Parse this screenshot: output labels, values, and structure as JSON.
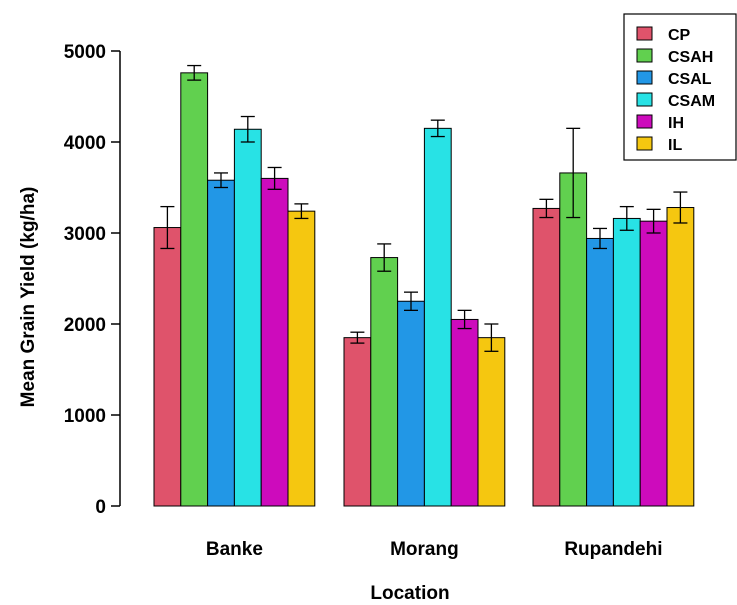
{
  "chart_data": {
    "type": "bar",
    "title": "",
    "xlabel": "Location",
    "ylabel": "Mean Grain Yield (kg/ha)",
    "ylim": [
      0,
      5000
    ],
    "yticks": [
      "0",
      "1000",
      "2000",
      "3000",
      "4000",
      "5000"
    ],
    "categories": [
      "Banke",
      "Morang",
      "Rupandehi"
    ],
    "legend_position": "top-right",
    "error_bars": true,
    "series": [
      {
        "name": "CP",
        "color": "#DF536B",
        "values": [
          3060,
          1850,
          3270
        ],
        "err": [
          230,
          60,
          100
        ]
      },
      {
        "name": "CSAH",
        "color": "#61D04F",
        "values": [
          4760,
          2730,
          3660
        ],
        "err": [
          80,
          150,
          490
        ]
      },
      {
        "name": "CSAL",
        "color": "#2297E6",
        "values": [
          3580,
          2250,
          2940
        ],
        "err": [
          80,
          100,
          110
        ]
      },
      {
        "name": "CSAM",
        "color": "#28E2E5",
        "values": [
          4140,
          4150,
          3160
        ],
        "err": [
          140,
          90,
          130
        ]
      },
      {
        "name": "IH",
        "color": "#CD0BBC",
        "values": [
          3600,
          2050,
          3130
        ],
        "err": [
          120,
          100,
          130
        ]
      },
      {
        "name": "IL",
        "color": "#F5C710",
        "values": [
          3240,
          1850,
          3280
        ],
        "err": [
          80,
          150,
          170
        ]
      }
    ]
  }
}
